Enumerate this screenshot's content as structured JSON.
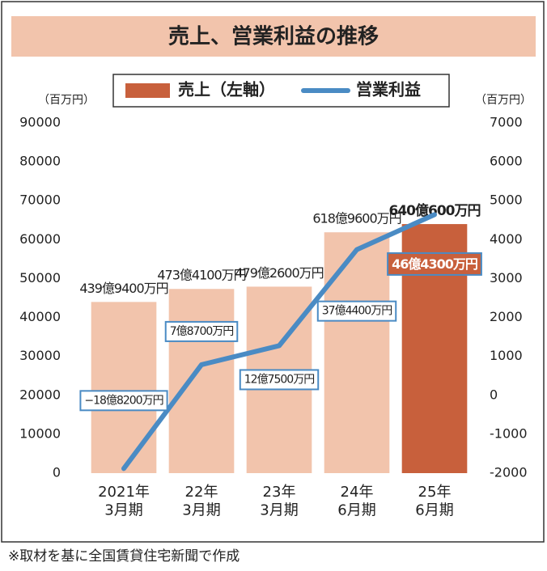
{
  "chart_data": {
    "type": "bar-line",
    "title": "売上、営業利益の推移",
    "y_unit": "（百万円）",
    "y2_unit": "（百万円）",
    "categories": [
      "2021年\n3月期",
      "22年\n3月期",
      "23年\n3月期",
      "24年\n6月期",
      "25年\n6月期"
    ],
    "series": [
      {
        "name": "売上（左軸）",
        "type": "bar",
        "color": "#c8603c",
        "colors": [
          "#f2c4ac",
          "#f2c4ac",
          "#f2c4ac",
          "#f2c4ac",
          "#c8603c"
        ],
        "values": [
          43994,
          47341,
          47926,
          61896,
          64006
        ],
        "value_labels": [
          "439億9400万円",
          "473億4100万円",
          "479億2600万円",
          "618億9600万円",
          "640億600万円"
        ]
      },
      {
        "name": "営業利益",
        "type": "line",
        "axis": "y2",
        "color": "#4a8bc4",
        "values": [
          -1882,
          787,
          1275,
          3744,
          4643
        ],
        "value_labels": [
          "−18億8200万円",
          "7億8700万円",
          "12億7500万円",
          "37億4400万円",
          "46億4300万円"
        ]
      }
    ],
    "ylim": [
      0,
      90000
    ],
    "yticks": [
      0,
      10000,
      20000,
      30000,
      40000,
      50000,
      60000,
      70000,
      80000,
      90000
    ],
    "y2lim": [
      -2000,
      7000
    ],
    "y2ticks": [
      -2000,
      -1000,
      0,
      1000,
      2000,
      3000,
      4000,
      5000,
      6000,
      7000
    ],
    "note": "※取材を基に全国賃貸住宅新聞で作成"
  }
}
